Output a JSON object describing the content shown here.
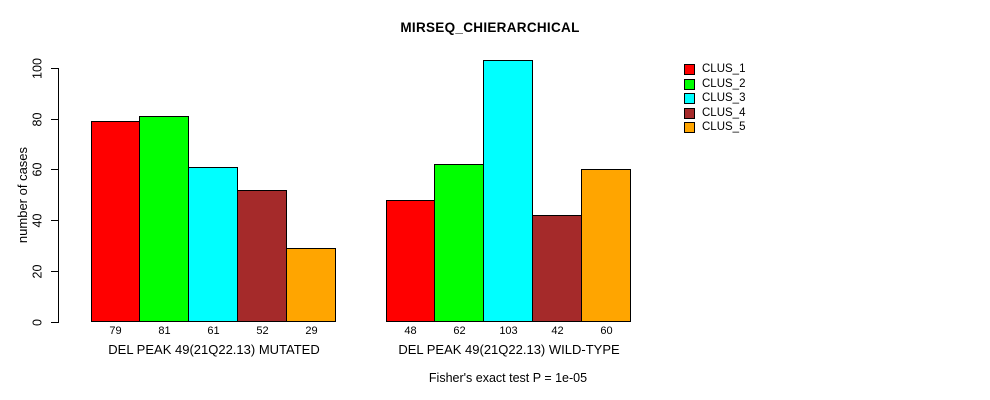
{
  "title": "MIRSEQ_CHIERARCHICAL",
  "footnote": "Fisher's exact test P = 1e-05",
  "chart_data": {
    "type": "bar",
    "title": "MIRSEQ_CHIERARCHICAL",
    "ylabel": "number of cases",
    "xlabel": "",
    "ylim": [
      0,
      100
    ],
    "yticks": [
      0,
      20,
      40,
      60,
      80,
      100
    ],
    "grid": "off",
    "legend_position": "right-outside",
    "bar_value_labels": true,
    "categories": [
      "DEL PEAK 49(21Q22.13) MUTATED",
      "DEL PEAK 49(21Q22.13) WILD-TYPE"
    ],
    "series": [
      {
        "name": "CLUS_1",
        "color": "#FF0000",
        "values": [
          79,
          48
        ]
      },
      {
        "name": "CLUS_2",
        "color": "#00FF00",
        "values": [
          81,
          62
        ]
      },
      {
        "name": "CLUS_3",
        "color": "#00FFFF",
        "values": [
          61,
          103
        ]
      },
      {
        "name": "CLUS_4",
        "color": "#A52A2A",
        "values": [
          52,
          42
        ]
      },
      {
        "name": "CLUS_5",
        "color": "#FFA500",
        "values": [
          29,
          60
        ]
      }
    ],
    "annotation": "Fisher's exact test P = 1e-05"
  }
}
